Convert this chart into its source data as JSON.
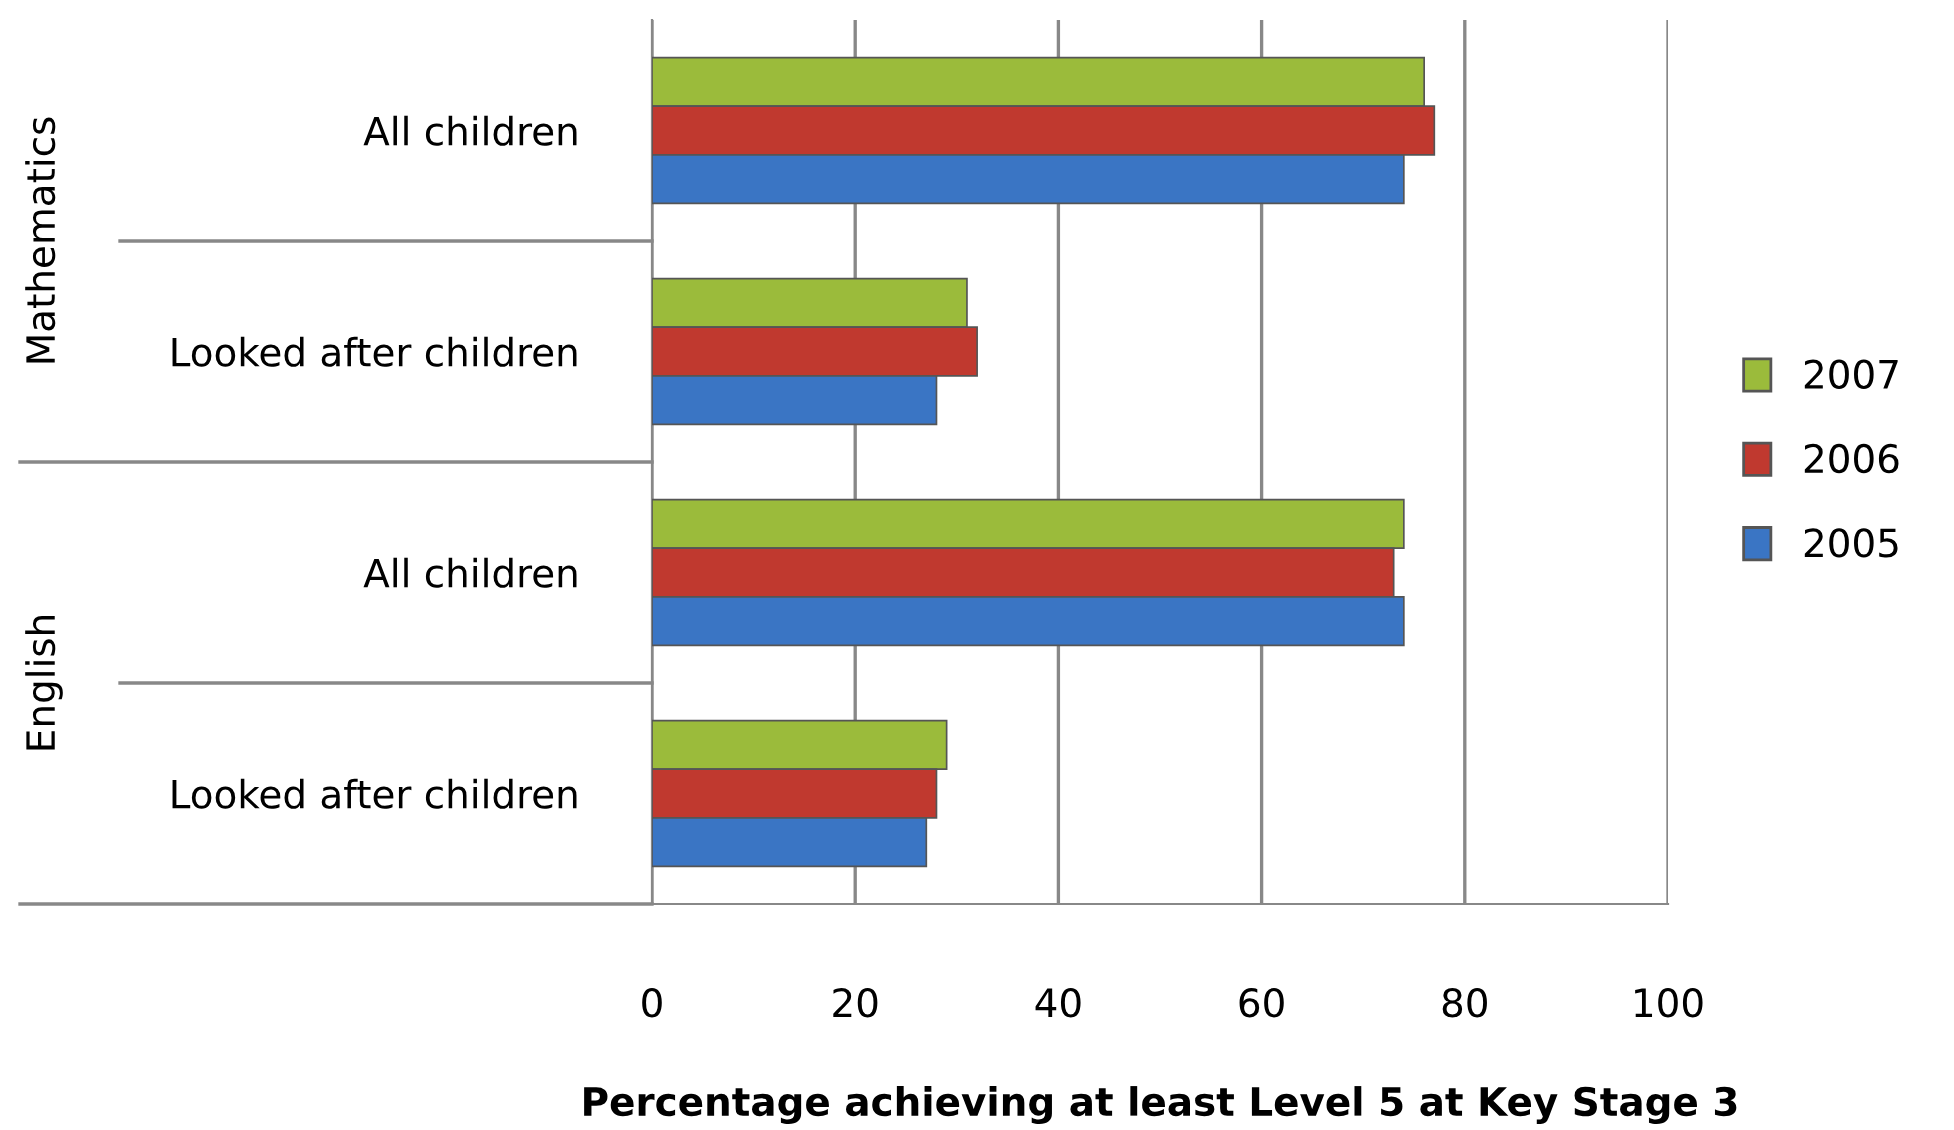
{
  "chart_data": {
    "type": "bar",
    "orientation": "horizontal",
    "xlabel": "Percentage achieving at least Level 5 at Key Stage 3",
    "categories": [
      "All children",
      "Looked after children",
      "All children",
      "Looked after children"
    ],
    "series": [
      {
        "name": "2007",
        "color": "#9bbb3b",
        "values": [
          76,
          31,
          74,
          29
        ]
      },
      {
        "name": "2006",
        "color": "#c0392f",
        "values": [
          77,
          32,
          73,
          28
        ]
      },
      {
        "name": "2005",
        "color": "#3a75c4",
        "values": [
          74,
          28,
          74,
          27
        ]
      }
    ],
    "annotations": [
      "Mathematics",
      "English"
    ],
    "xlim": [
      0,
      100
    ],
    "xticks": [
      0,
      20,
      40,
      60,
      80,
      100
    ],
    "grid": "x",
    "legend": "right"
  }
}
